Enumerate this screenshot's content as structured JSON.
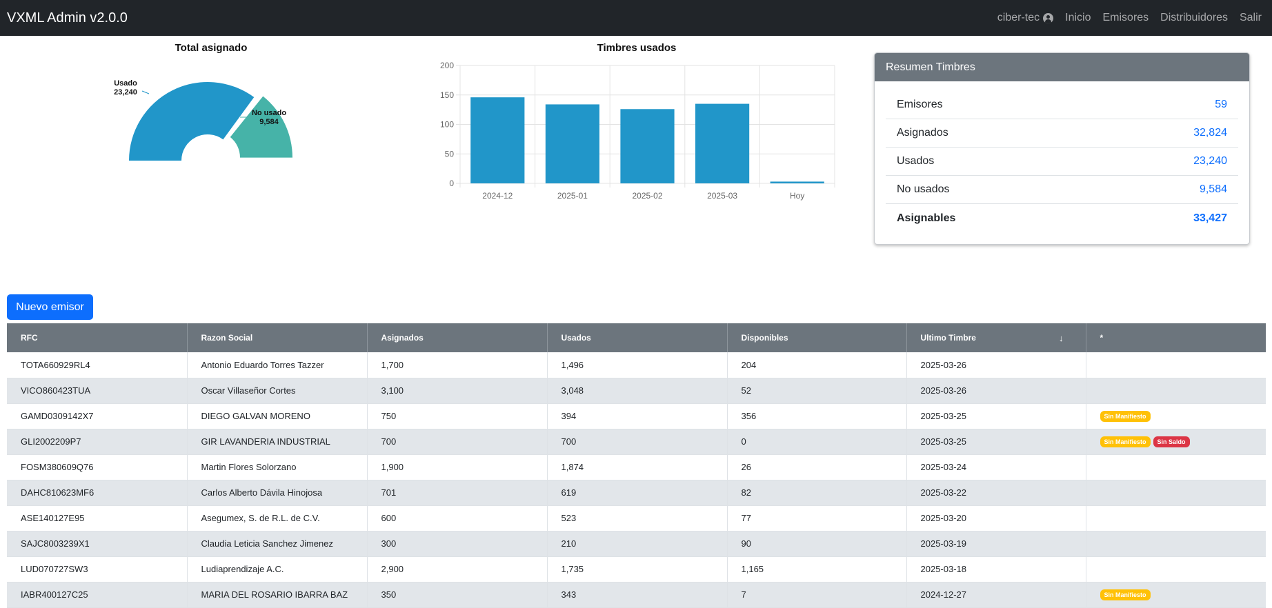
{
  "navbar": {
    "brand": "VXML Admin v2.0.0",
    "user": "ciber-tec",
    "links": [
      "Inicio",
      "Emisores",
      "Distribuidores",
      "Salir"
    ]
  },
  "chart_data": [
    {
      "type": "pie",
      "title": "Total asignado",
      "categories": [
        "Usado",
        "No usado"
      ],
      "values": [
        23240,
        9584
      ],
      "value_labels": [
        "23,240",
        "9,584"
      ],
      "colors": [
        "#2196c9",
        "#46b3a8"
      ]
    },
    {
      "type": "bar",
      "title": "Timbres usados",
      "categories": [
        "2024-12",
        "2025-01",
        "2025-02",
        "2025-03",
        "Hoy"
      ],
      "values": [
        146,
        134,
        126,
        135,
        3
      ],
      "ylim": [
        0,
        200
      ],
      "yticks": [
        0,
        50,
        100,
        150,
        200
      ],
      "grid": true,
      "color": "#2196c9"
    }
  ],
  "summary": {
    "title": "Resumen Timbres",
    "rows": [
      {
        "label": "Emisores",
        "value": "59"
      },
      {
        "label": "Asignados",
        "value": "32,824"
      },
      {
        "label": "Usados",
        "value": "23,240"
      },
      {
        "label": "No usados",
        "value": "9,584"
      },
      {
        "label": "Asignables",
        "value": "33,427"
      }
    ]
  },
  "new_button": "Nuevo emisor",
  "table": {
    "columns": [
      "RFC",
      "Razon Social",
      "Asignados",
      "Usados",
      "Disponibles",
      "Ultimo Timbre",
      "*"
    ],
    "sort_icon": "↓",
    "rows": [
      {
        "rfc": "TOTA660929RL4",
        "razon": "Antonio Eduardo Torres Tazzer",
        "asignados": "1,700",
        "usados": "1,496",
        "disponibles": "204",
        "ultimo": "2025-03-26",
        "badges": []
      },
      {
        "rfc": "VICO860423TUA",
        "razon": "Oscar Villaseñor Cortes",
        "asignados": "3,100",
        "usados": "3,048",
        "disponibles": "52",
        "ultimo": "2025-03-26",
        "badges": []
      },
      {
        "rfc": "GAMD0309142X7",
        "razon": "DIEGO GALVAN MORENO",
        "asignados": "750",
        "usados": "394",
        "disponibles": "356",
        "ultimo": "2025-03-25",
        "badges": [
          "Sin Manifiesto"
        ]
      },
      {
        "rfc": "GLI2002209P7",
        "razon": "GIR LAVANDERIA INDUSTRIAL",
        "asignados": "700",
        "usados": "700",
        "disponibles": "0",
        "ultimo": "2025-03-25",
        "badges": [
          "Sin Manifiesto",
          "Sin Saldo"
        ]
      },
      {
        "rfc": "FOSM380609Q76",
        "razon": "Martin Flores Solorzano",
        "asignados": "1,900",
        "usados": "1,874",
        "disponibles": "26",
        "ultimo": "2025-03-24",
        "badges": []
      },
      {
        "rfc": "DAHC810623MF6",
        "razon": "Carlos Alberto Dávila Hinojosa",
        "asignados": "701",
        "usados": "619",
        "disponibles": "82",
        "ultimo": "2025-03-22",
        "badges": []
      },
      {
        "rfc": "ASE140127E95",
        "razon": "Asegumex, S. de R.L. de C.V.",
        "asignados": "600",
        "usados": "523",
        "disponibles": "77",
        "ultimo": "2025-03-20",
        "badges": []
      },
      {
        "rfc": "SAJC8003239X1",
        "razon": "Claudia Leticia Sanchez Jimenez",
        "asignados": "300",
        "usados": "210",
        "disponibles": "90",
        "ultimo": "2025-03-19",
        "badges": []
      },
      {
        "rfc": "LUD070727SW3",
        "razon": "Ludiaprendizaje A.C.",
        "asignados": "2,900",
        "usados": "1,735",
        "disponibles": "1,165",
        "ultimo": "2025-03-18",
        "badges": []
      },
      {
        "rfc": "IABR400127C25",
        "razon": "MARIA DEL ROSARIO IBARRA BAZ",
        "asignados": "350",
        "usados": "343",
        "disponibles": "7",
        "ultimo": "2024-12-27",
        "badges": [
          "Sin Manifiesto"
        ]
      }
    ]
  }
}
